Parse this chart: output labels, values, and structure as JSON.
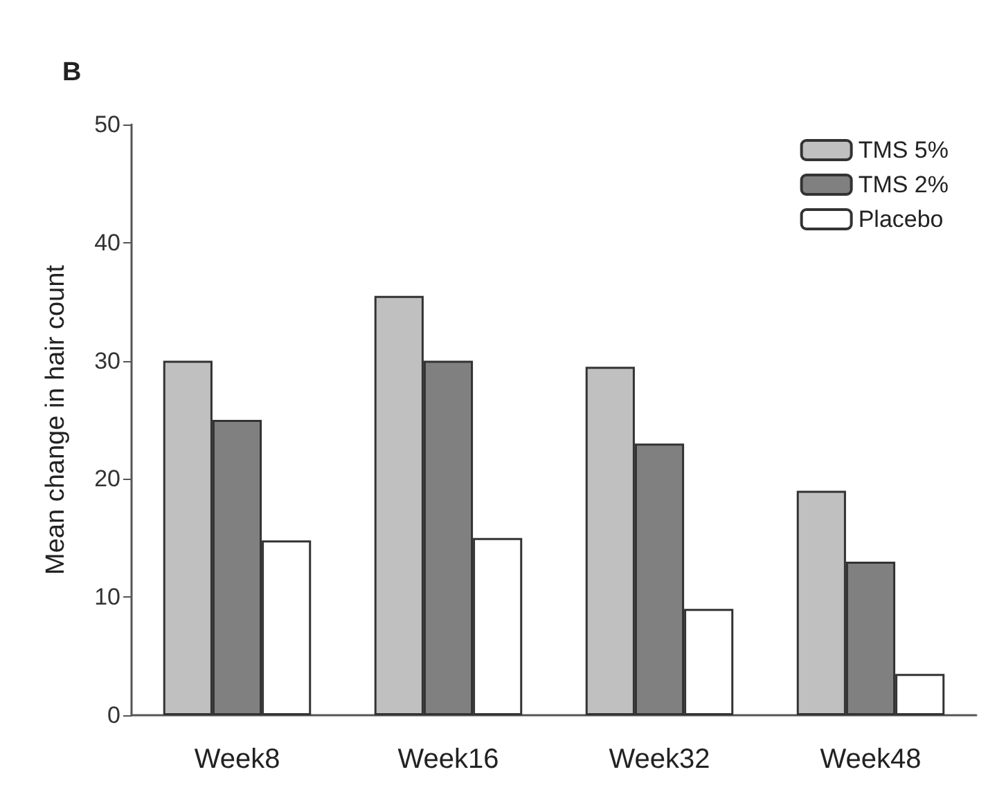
{
  "chart_data": {
    "type": "bar",
    "title": "B",
    "ylabel": "Mean change in hair count",
    "categories": [
      "Week8",
      "Week16",
      "Week32",
      "Week48"
    ],
    "series": [
      {
        "name": "TMS 5%",
        "color": "#c0c0c0",
        "values": [
          30,
          35.5,
          29.5,
          19
        ]
      },
      {
        "name": "TMS 2%",
        "color": "#808080",
        "values": [
          25,
          30,
          23,
          13
        ]
      },
      {
        "name": "Placebo",
        "color": "#ffffff",
        "values": [
          14.8,
          15,
          9,
          3.5
        ]
      }
    ],
    "ylim": [
      0,
      50
    ],
    "yticks": [
      0,
      10,
      20,
      30,
      40,
      50
    ],
    "grid": false,
    "legend": "top right"
  }
}
